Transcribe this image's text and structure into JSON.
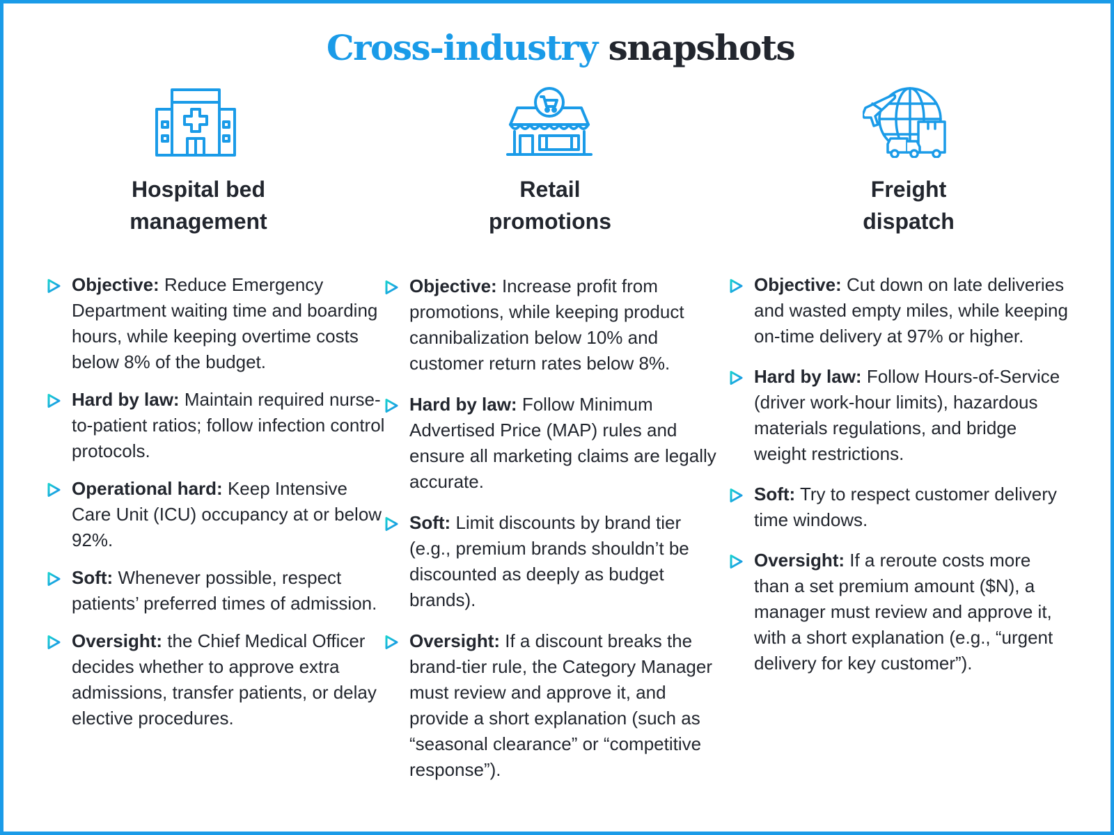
{
  "title": {
    "accent": "Cross-industry",
    "rest": "snapshots"
  },
  "colors": {
    "accent": "#1a9be8",
    "bullet_a": "#18c7d6",
    "bullet_b": "#1a8ee8",
    "text": "#22262e"
  },
  "columns": [
    {
      "icon": "hospital-icon",
      "heading_line1": "Hospital bed",
      "heading_line2": "management",
      "items": [
        {
          "label": "Objective:",
          "text": "Reduce Emergency Department waiting time and boarding hours, while keeping overtime costs below 8% of the budget."
        },
        {
          "label": "Hard by law:",
          "text": "Maintain required nurse-to-patient ratios; follow infection control protocols."
        },
        {
          "label": "Operational hard:",
          "text": "Keep Intensive Care Unit (ICU) occupancy at or below 92%."
        },
        {
          "label": "Soft:",
          "text": "Whenever possible, respect patients’ preferred times of admission."
        },
        {
          "label": "Oversight:",
          "text": "the Chief Medical Officer decides whether to approve extra admissions, transfer patients, or delay elective procedures."
        }
      ]
    },
    {
      "icon": "storefront-icon",
      "heading_line1": "Retail",
      "heading_line2": "promotions",
      "items": [
        {
          "label": "Objective:",
          "text": "Increase profit from promotions, while keeping product cannibalization below 10% and customer return rates below 8%."
        },
        {
          "label": "Hard by law:",
          "text": "Follow Minimum Advertised Price (MAP) rules and ensure all marketing claims are legally accurate."
        },
        {
          "label": "Soft:",
          "text": "Limit discounts by brand tier (e.g., premium brands shouldn’t be discounted as deeply as budget brands)."
        },
        {
          "label": "Oversight:",
          "text": "If a discount breaks the brand-tier rule, the Category Manager must review and approve it, and provide a short explanation (such as “seasonal clearance” or “competitive response”)."
        }
      ]
    },
    {
      "icon": "global-freight-icon",
      "heading_line1": "Freight",
      "heading_line2": "dispatch",
      "items": [
        {
          "label": "Objective:",
          "text": "Cut down on late deliveries and wasted empty miles, while keeping on-time delivery at 97% or higher."
        },
        {
          "label": "Hard by law:",
          "text": "Follow Hours-of-Service (driver work-hour limits), hazardous materials regulations, and bridge weight restrictions."
        },
        {
          "label": "Soft:",
          "text": "Try to respect customer delivery time windows."
        },
        {
          "label": "Oversight:",
          "text": "If a reroute costs more than a set premium amount ($N), a manager must review and approve it, with a short explanation (e.g., “urgent delivery for key customer”)."
        }
      ]
    }
  ]
}
